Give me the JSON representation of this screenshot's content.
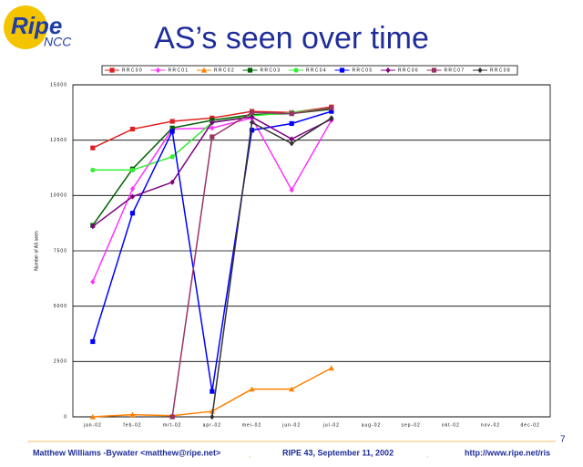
{
  "logo": {
    "name": "Ripe",
    "sub": "NCC"
  },
  "chart_data": {
    "type": "line",
    "title": "AS’s seen over time",
    "y_label": "Number of AS seen",
    "categories": [
      "jan-02",
      "feb-02",
      "mrt-02",
      "apr-02",
      "mei-02",
      "jun-02",
      "jul-02",
      "aug-02",
      "sep-02",
      "okt-02",
      "nov-02",
      "dec-02"
    ],
    "series": [
      {
        "name": "RRC00",
        "color": "#e02020",
        "marker": "square",
        "values": [
          12150,
          13000,
          13350,
          13500,
          13800,
          13750,
          14000,
          null,
          null,
          null,
          null,
          null
        ]
      },
      {
        "name": "RRC01",
        "color": "#ff33ff",
        "marker": "diamond",
        "values": [
          6100,
          10300,
          13000,
          13050,
          13500,
          10250,
          13400,
          null,
          null,
          null,
          null,
          null
        ]
      },
      {
        "name": "RRC02",
        "color": "#ff8000",
        "marker": "triangle",
        "values": [
          0,
          100,
          50,
          250,
          1250,
          1250,
          2200,
          null,
          null,
          null,
          null,
          null
        ]
      },
      {
        "name": "RRC03",
        "color": "#006000",
        "marker": "square",
        "values": [
          8650,
          11200,
          13050,
          13400,
          13650,
          13700,
          13900,
          null,
          null,
          null,
          null,
          null
        ]
      },
      {
        "name": "RRC04",
        "color": "#33ee33",
        "marker": "circle",
        "values": [
          11150,
          11150,
          11750,
          13300,
          13600,
          13750,
          13950,
          null,
          null,
          null,
          null,
          null
        ]
      },
      {
        "name": "RRC05",
        "color": "#0000ff",
        "marker": "square",
        "values": [
          3400,
          9200,
          12900,
          1150,
          12950,
          13250,
          13800,
          null,
          null,
          null,
          null,
          null
        ]
      },
      {
        "name": "RRC06",
        "color": "#800080",
        "marker": "diamond",
        "values": [
          8600,
          9950,
          10600,
          13300,
          13550,
          12550,
          13450,
          null,
          null,
          null,
          null,
          null
        ]
      },
      {
        "name": "RRC07",
        "color": "#993366",
        "marker": "square",
        "values": [
          null,
          null,
          0,
          12650,
          13750,
          13700,
          13950,
          null,
          null,
          null,
          null,
          null
        ]
      },
      {
        "name": "RRC08",
        "color": "#333333",
        "marker": "diamond",
        "values": [
          null,
          null,
          null,
          0,
          13300,
          12350,
          13500,
          null,
          null,
          null,
          null,
          null
        ]
      }
    ],
    "ylim": [
      0,
      15000
    ],
    "yticks": [
      0,
      2500,
      5000,
      7500,
      10000,
      12500,
      15000
    ],
    "grid": true,
    "legend": "top"
  },
  "page_number": 7,
  "footer": {
    "author": "Matthew Williams -Bywater <matthew@ripe.net>",
    "event": "RIPE 43, September 11, 2002",
    "url": "http://www.ripe.net/ris"
  }
}
